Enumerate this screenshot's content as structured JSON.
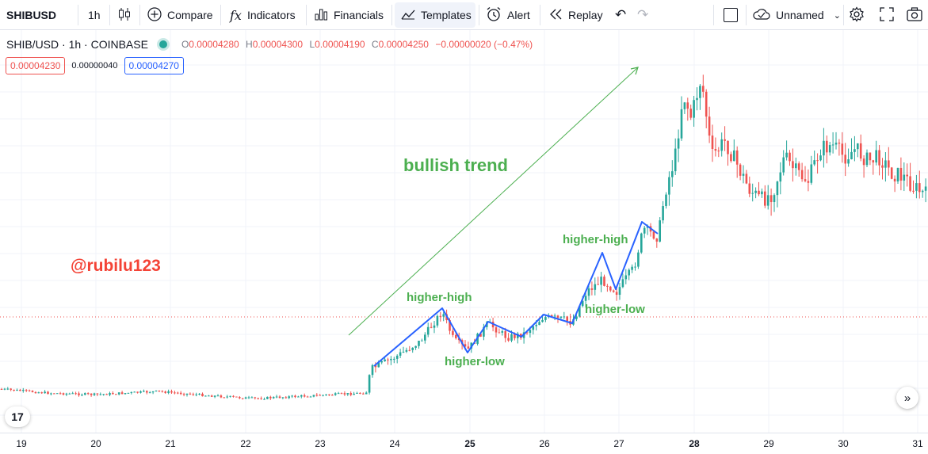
{
  "toolbar": {
    "symbol": "SHIBUSD",
    "interval": "1h",
    "compare_label": "Compare",
    "indicators_label": "Indicators",
    "financials_label": "Financials",
    "templates_label": "Templates",
    "alert_label": "Alert",
    "replay_label": "Replay",
    "layout_name": "Unnamed"
  },
  "legend": {
    "symbol_line": "SHIB/USD · 1h · COINBASE",
    "open_label": "O",
    "open": "0.00004280",
    "high_label": "H",
    "high": "0.00004300",
    "low_label": "L",
    "low": "0.00004190",
    "close_label": "C",
    "close": "0.00004250",
    "change": "−0.00000020 (−0.47%)"
  },
  "prices": {
    "bid": "0.00004230",
    "spread": "0.00000040",
    "ask": "0.00004270"
  },
  "annotations": {
    "trend": "bullish trend",
    "author": "@rubilu123",
    "hh1": "higher-high",
    "hl1": "higher-low",
    "hh2": "higher-high",
    "hl2": "higher-low"
  },
  "time_axis": [
    "19",
    "20",
    "21",
    "22",
    "23",
    "24",
    "25",
    "26",
    "27",
    "28",
    "29",
    "30",
    "31"
  ],
  "logo_text": "17",
  "colors": {
    "up": "#26a69a",
    "down": "#ef5350",
    "line": "#2962ff",
    "arrow": "#4caf50"
  }
}
